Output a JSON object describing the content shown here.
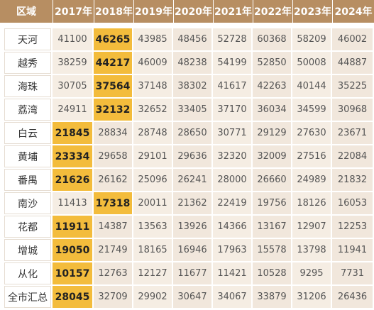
{
  "chart_data": {
    "type": "table",
    "header": [
      "区域",
      "2017年",
      "2018年",
      "2019年",
      "2020年",
      "2021年",
      "2022年",
      "2023年",
      "2024年"
    ],
    "rows": [
      {
        "region": "天河",
        "values": [
          41100,
          46265,
          43985,
          48456,
          52728,
          60368,
          58209,
          46002
        ],
        "highlight": 1
      },
      {
        "region": "越秀",
        "values": [
          38259,
          44217,
          46009,
          48238,
          54199,
          52850,
          50008,
          44887
        ],
        "highlight": 1
      },
      {
        "region": "海珠",
        "values": [
          30705,
          37564,
          37148,
          38302,
          41617,
          42263,
          40144,
          35225
        ],
        "highlight": 1
      },
      {
        "region": "荔湾",
        "values": [
          24911,
          32132,
          32652,
          33405,
          37170,
          36034,
          34599,
          30968
        ],
        "highlight": 1
      },
      {
        "region": "白云",
        "values": [
          21845,
          28834,
          28748,
          28650,
          30771,
          29129,
          27630,
          23671
        ],
        "highlight": 0
      },
      {
        "region": "黄埔",
        "values": [
          23334,
          29658,
          29101,
          29636,
          32320,
          32009,
          27516,
          22084
        ],
        "highlight": 0
      },
      {
        "region": "番禺",
        "values": [
          21626,
          26162,
          25096,
          26241,
          28000,
          26660,
          24989,
          21832
        ],
        "highlight": 0
      },
      {
        "region": "南沙",
        "values": [
          11413,
          17318,
          20011,
          21362,
          22419,
          19756,
          18126,
          16053
        ],
        "highlight": 1
      },
      {
        "region": "花都",
        "values": [
          11911,
          14387,
          13563,
          13926,
          14366,
          13167,
          12907,
          12253
        ],
        "highlight": 0
      },
      {
        "region": "增城",
        "values": [
          19050,
          21749,
          18165,
          16946,
          17963,
          15578,
          13798,
          11941
        ],
        "highlight": 0
      },
      {
        "region": "从化",
        "values": [
          10157,
          12763,
          12127,
          11677,
          11421,
          10528,
          9295,
          7731
        ],
        "highlight": 0
      },
      {
        "region": "全市汇总",
        "values": [
          28045,
          32709,
          29902,
          30647,
          34067,
          33879,
          31206,
          26436
        ],
        "highlight": 0
      }
    ],
    "colors": {
      "header_bg": "#b78e62",
      "highlight_bg": "#f3bc3c",
      "cell_bg": "#f5ede3"
    }
  }
}
